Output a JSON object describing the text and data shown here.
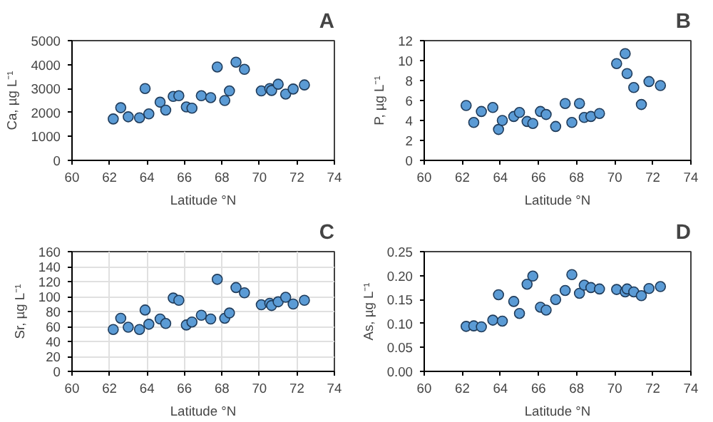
{
  "chart_data": [
    {
      "type": "scatter",
      "title": "A",
      "xlabel": "Latitude °N",
      "ylabel": "Ca, µg L⁻¹",
      "marker": "circle",
      "grid": false,
      "xlim": [
        60,
        74
      ],
      "xticks": [
        60,
        62,
        64,
        66,
        68,
        70,
        72,
        74
      ],
      "ylim": [
        0,
        5000
      ],
      "yticks": [
        0,
        1000,
        2000,
        3000,
        4000,
        5000
      ],
      "x": [
        62.2,
        62.6,
        63.0,
        63.6,
        63.9,
        64.1,
        64.7,
        65.0,
        65.4,
        65.7,
        66.1,
        66.4,
        66.9,
        67.4,
        67.75,
        68.15,
        68.4,
        68.75,
        69.2,
        70.1,
        70.55,
        70.65,
        71.0,
        71.4,
        71.8,
        72.4
      ],
      "series": [
        {
          "color": "#5b9bd5",
          "values": [
            1730,
            2200,
            1820,
            1780,
            3000,
            1940,
            2430,
            2100,
            2670,
            2700,
            2230,
            2180,
            2700,
            2620,
            3900,
            2500,
            2900,
            4100,
            3800,
            2900,
            3000,
            2920,
            3180,
            2770,
            2980,
            3150
          ]
        }
      ]
    },
    {
      "type": "scatter",
      "title": "B",
      "xlabel": "Latitude °N",
      "ylabel": "P, µg L⁻¹",
      "marker": "circle",
      "grid": false,
      "xlim": [
        60,
        74
      ],
      "xticks": [
        60,
        62,
        64,
        66,
        68,
        70,
        72,
        74
      ],
      "ylim": [
        0,
        12
      ],
      "yticks": [
        0,
        2,
        4,
        6,
        8,
        10,
        12
      ],
      "x": [
        62.2,
        62.6,
        63.0,
        63.6,
        63.9,
        64.1,
        64.7,
        65.0,
        65.4,
        65.7,
        66.1,
        66.4,
        66.9,
        67.4,
        67.75,
        68.15,
        68.4,
        68.75,
        69.2,
        70.1,
        70.55,
        70.65,
        71.0,
        71.4,
        71.8,
        72.4
      ],
      "series": [
        {
          "color": "#5b9bd5",
          "values": [
            5.5,
            3.8,
            4.9,
            5.3,
            3.1,
            4.0,
            4.4,
            4.8,
            3.9,
            3.7,
            4.9,
            4.6,
            3.4,
            5.7,
            3.8,
            5.7,
            4.3,
            4.4,
            4.7,
            9.7,
            10.7,
            8.7,
            7.3,
            5.6,
            7.9,
            7.5
          ]
        }
      ]
    },
    {
      "type": "scatter",
      "title": "C",
      "xlabel": "Latitude °N",
      "ylabel": "Sr, µg L⁻¹",
      "marker": "circle",
      "grid": true,
      "xlim": [
        60,
        74
      ],
      "xticks": [
        60,
        62,
        64,
        66,
        68,
        70,
        72,
        74
      ],
      "ylim": [
        0,
        160
      ],
      "yticks": [
        0,
        20,
        40,
        60,
        80,
        100,
        120,
        140,
        160
      ],
      "x": [
        62.2,
        62.6,
        63.0,
        63.6,
        63.9,
        64.1,
        64.7,
        65.0,
        65.4,
        65.7,
        66.1,
        66.4,
        66.9,
        67.4,
        67.75,
        68.15,
        68.4,
        68.75,
        69.2,
        70.1,
        70.55,
        70.65,
        71.0,
        71.4,
        71.8,
        72.4
      ],
      "series": [
        {
          "color": "#5b9bd5",
          "values": [
            56,
            71,
            59,
            56,
            82,
            63,
            70,
            64,
            98,
            95,
            62,
            66,
            75,
            70,
            123,
            71,
            78,
            112,
            105,
            89,
            91,
            88,
            93,
            99,
            90,
            95
          ]
        }
      ]
    },
    {
      "type": "scatter",
      "title": "D",
      "xlabel": "Latitude °N",
      "ylabel": "As, µg L⁻¹",
      "marker": "circle",
      "grid": false,
      "xlim": [
        60,
        74
      ],
      "xticks": [
        60,
        62,
        64,
        66,
        68,
        70,
        72,
        74
      ],
      "ylim": [
        0,
        0.25
      ],
      "yticks": [
        {
          "value": 0,
          "label": "0.00"
        },
        {
          "value": 0.05,
          "label": "0.05"
        },
        {
          "value": 0.1,
          "label": "0.10"
        },
        {
          "value": 0.15,
          "label": "0.15"
        },
        {
          "value": 0.2,
          "label": "0.20"
        },
        {
          "value": 0.25,
          "label": "0.25"
        }
      ],
      "x": [
        62.2,
        62.6,
        63.0,
        63.6,
        63.9,
        64.1,
        64.7,
        65.0,
        65.4,
        65.7,
        66.1,
        66.4,
        66.9,
        67.4,
        67.75,
        68.15,
        68.4,
        68.75,
        69.2,
        70.1,
        70.55,
        70.65,
        71.0,
        71.4,
        71.8,
        72.4
      ],
      "series": [
        {
          "color": "#5b9bd5",
          "values": [
            0.094,
            0.095,
            0.093,
            0.107,
            0.16,
            0.105,
            0.146,
            0.121,
            0.182,
            0.199,
            0.134,
            0.128,
            0.15,
            0.169,
            0.202,
            0.163,
            0.18,
            0.175,
            0.172,
            0.171,
            0.166,
            0.172,
            0.166,
            0.158,
            0.173,
            0.177
          ]
        }
      ]
    }
  ]
}
